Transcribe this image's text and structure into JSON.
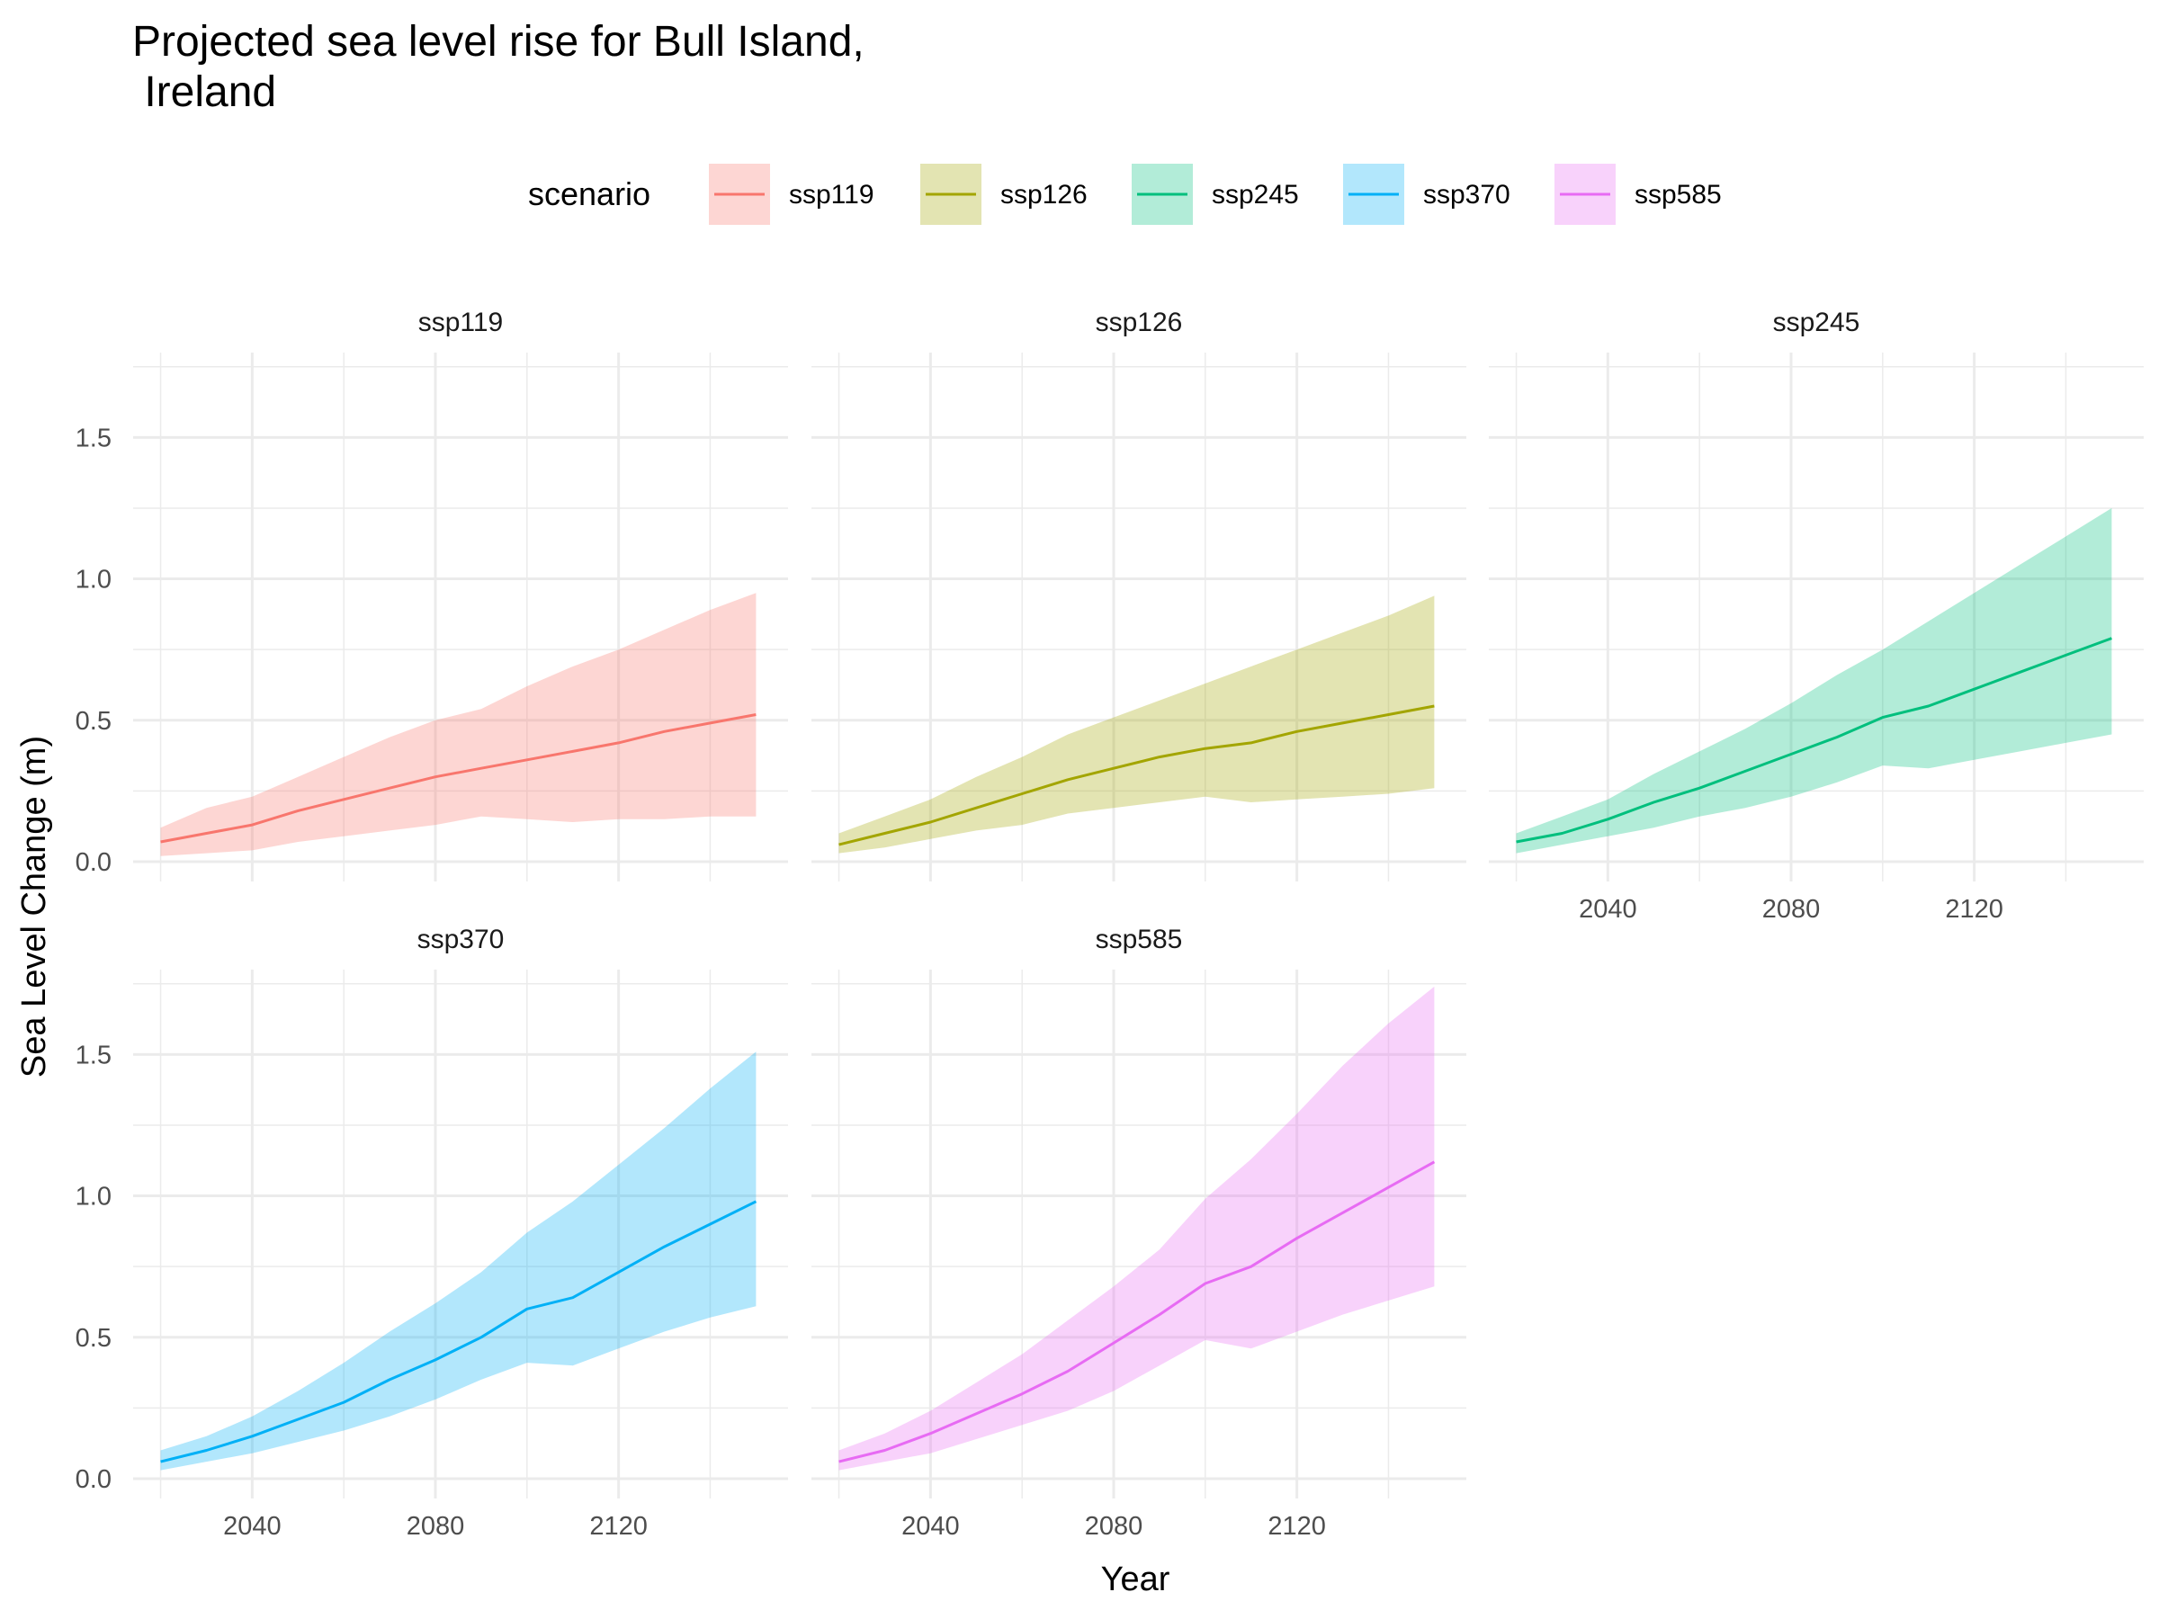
{
  "chart_data": {
    "type": "line",
    "title_line1": "Projected sea level rise for Bull Island,",
    "title_line2": " Ireland",
    "xlabel": "Year",
    "ylabel": "Sea Level Change (m)",
    "legend": {
      "title": "scenario",
      "position": "top"
    },
    "xlim": [
      2020,
      2150
    ],
    "ylim": [
      0,
      1.75
    ],
    "x_ticks": [
      2040,
      2080,
      2120
    ],
    "y_ticks": [
      0.0,
      0.5,
      1.0,
      1.5
    ],
    "y_tick_labels": [
      "0.0",
      "0.5",
      "1.0",
      "1.5"
    ],
    "grid": true,
    "band": "shaded range around median",
    "x": [
      2020,
      2030,
      2040,
      2050,
      2060,
      2070,
      2080,
      2090,
      2100,
      2110,
      2120,
      2130,
      2140,
      2150
    ],
    "series": [
      {
        "name": "ssp119",
        "color": "#F8766D",
        "median": [
          0.07,
          0.1,
          0.13,
          0.18,
          0.22,
          0.26,
          0.3,
          0.33,
          0.36,
          0.39,
          0.42,
          0.46,
          0.49,
          0.52
        ],
        "lower": [
          0.02,
          0.03,
          0.04,
          0.07,
          0.09,
          0.11,
          0.13,
          0.16,
          0.15,
          0.14,
          0.15,
          0.15,
          0.16,
          0.16
        ],
        "upper": [
          0.12,
          0.19,
          0.23,
          0.3,
          0.37,
          0.44,
          0.5,
          0.54,
          0.62,
          0.69,
          0.75,
          0.82,
          0.89,
          0.95
        ]
      },
      {
        "name": "ssp126",
        "color": "#A3A500",
        "median": [
          0.06,
          0.1,
          0.14,
          0.19,
          0.24,
          0.29,
          0.33,
          0.37,
          0.4,
          0.42,
          0.46,
          0.49,
          0.52,
          0.55
        ],
        "lower": [
          0.03,
          0.05,
          0.08,
          0.11,
          0.13,
          0.17,
          0.19,
          0.21,
          0.23,
          0.21,
          0.22,
          0.23,
          0.24,
          0.26
        ],
        "upper": [
          0.1,
          0.16,
          0.22,
          0.3,
          0.37,
          0.45,
          0.51,
          0.57,
          0.63,
          0.69,
          0.75,
          0.81,
          0.87,
          0.94
        ]
      },
      {
        "name": "ssp245",
        "color": "#00BF7D",
        "median": [
          0.07,
          0.1,
          0.15,
          0.21,
          0.26,
          0.32,
          0.38,
          0.44,
          0.51,
          0.55,
          0.61,
          0.67,
          0.73,
          0.79
        ],
        "lower": [
          0.03,
          0.06,
          0.09,
          0.12,
          0.16,
          0.19,
          0.23,
          0.28,
          0.34,
          0.33,
          0.36,
          0.39,
          0.42,
          0.45
        ],
        "upper": [
          0.1,
          0.16,
          0.22,
          0.31,
          0.39,
          0.47,
          0.56,
          0.66,
          0.75,
          0.85,
          0.95,
          1.05,
          1.15,
          1.25
        ]
      },
      {
        "name": "ssp370",
        "color": "#00B0F6",
        "median": [
          0.06,
          0.1,
          0.15,
          0.21,
          0.27,
          0.35,
          0.42,
          0.5,
          0.6,
          0.64,
          0.73,
          0.82,
          0.9,
          0.98
        ],
        "lower": [
          0.03,
          0.06,
          0.09,
          0.13,
          0.17,
          0.22,
          0.28,
          0.35,
          0.41,
          0.4,
          0.46,
          0.52,
          0.57,
          0.61
        ],
        "upper": [
          0.1,
          0.15,
          0.22,
          0.31,
          0.41,
          0.52,
          0.62,
          0.73,
          0.87,
          0.98,
          1.11,
          1.24,
          1.38,
          1.51
        ]
      },
      {
        "name": "ssp585",
        "color": "#E76BF3",
        "median": [
          0.06,
          0.1,
          0.16,
          0.23,
          0.3,
          0.38,
          0.48,
          0.58,
          0.69,
          0.75,
          0.85,
          0.94,
          1.03,
          1.12
        ],
        "lower": [
          0.03,
          0.06,
          0.09,
          0.14,
          0.19,
          0.24,
          0.31,
          0.4,
          0.49,
          0.46,
          0.52,
          0.58,
          0.63,
          0.68
        ],
        "upper": [
          0.1,
          0.16,
          0.24,
          0.34,
          0.44,
          0.56,
          0.68,
          0.81,
          0.99,
          1.13,
          1.29,
          1.46,
          1.61,
          1.74
        ]
      }
    ]
  }
}
